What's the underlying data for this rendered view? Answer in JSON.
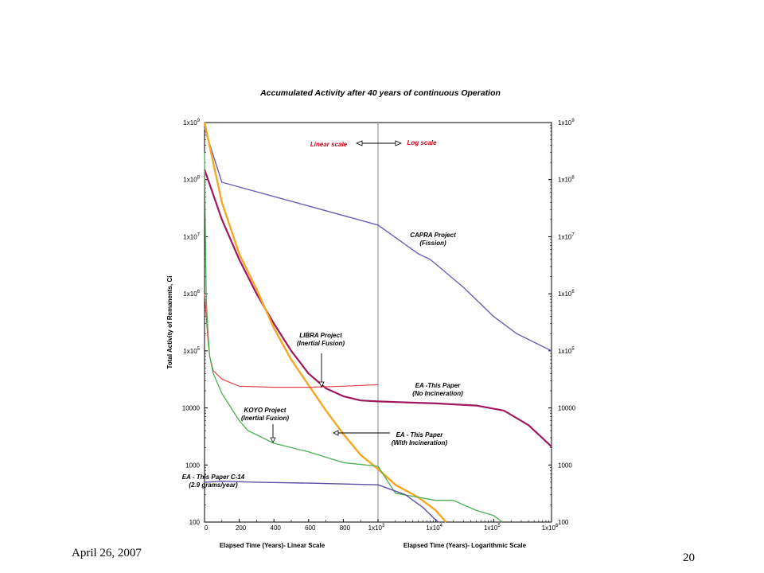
{
  "chart_data": {
    "type": "line",
    "title": "Accumulated Activity after 40 years of continuous Operation",
    "ylabel": "Total Activity of Remanents, Ci",
    "xlabel_linear": "Elapsed Time (Years)- Linear Scale",
    "xlabel_log": "Elapsed Time (Years)- Logarithmic Scale",
    "y_scale": "log",
    "ylim": [
      100,
      1000000000
    ],
    "y_ticks": [
      {
        "base": "1x10",
        "exp": "9",
        "value": 1000000000
      },
      {
        "base": "1x10",
        "exp": "8",
        "value": 100000000
      },
      {
        "base": "1x10",
        "exp": "7",
        "value": 10000000
      },
      {
        "base": "1x10",
        "exp": "6",
        "value": 1000000
      },
      {
        "base": "1x10",
        "exp": "5",
        "value": 100000
      },
      {
        "base": "10000",
        "exp": "",
        "value": 10000
      },
      {
        "base": "1000",
        "exp": "",
        "value": 1000
      },
      {
        "base": "100",
        "exp": "",
        "value": 100
      }
    ],
    "x_linear_range": [
      0,
      1000
    ],
    "x_log_range": [
      1000,
      1000000
    ],
    "x_ticks_linear": [
      {
        "label": "0",
        "value": 0
      },
      {
        "label": "200",
        "value": 200
      },
      {
        "label": "400",
        "value": 400
      },
      {
        "label": "600",
        "value": 600
      },
      {
        "label": "800",
        "value": 800
      }
    ],
    "x_ticks_log": [
      {
        "base": "1x10",
        "exp": "3",
        "value": 1000
      },
      {
        "base": "1x10",
        "exp": "4",
        "value": 10000
      },
      {
        "base": "1x10",
        "exp": "5",
        "value": 100000
      },
      {
        "base": "1x10",
        "exp": "6",
        "value": 1000000
      }
    ],
    "scale_divider_label_left": "Linear scale",
    "scale_divider_label_right": "Log scale",
    "series": [
      {
        "name": "CAPRA Project (Fission)",
        "label_lines": [
          "CAPRA  Project",
          "(Fission)"
        ],
        "color": "#6a5fb5",
        "points": [
          [
            0,
            800000000
          ],
          [
            100,
            90000000
          ],
          [
            1000,
            16000000
          ],
          [
            5000,
            5000000
          ],
          [
            8000,
            4000000
          ],
          [
            30000,
            1300000
          ],
          [
            100000,
            400000
          ],
          [
            250000,
            200000
          ],
          [
            1000000,
            100000
          ]
        ]
      },
      {
        "name": "EA -This Paper (No Incineration)",
        "label_lines": [
          "EA -This Paper",
          "(No Incineration)"
        ],
        "color": "#a0185e",
        "points": [
          [
            0,
            150000000
          ],
          [
            100,
            20000000
          ],
          [
            200,
            4000000
          ],
          [
            300,
            1000000
          ],
          [
            400,
            300000
          ],
          [
            500,
            100000
          ],
          [
            600,
            40000
          ],
          [
            700,
            22000
          ],
          [
            800,
            16000
          ],
          [
            900,
            13500
          ],
          [
            1000,
            13000
          ],
          [
            3000,
            12500
          ],
          [
            10000,
            12000
          ],
          [
            50000,
            11000
          ],
          [
            150000,
            9000
          ],
          [
            400000,
            5000
          ],
          [
            1000000,
            2100
          ]
        ]
      },
      {
        "name": "EA - This Paper (With Incineration)",
        "label_lines": [
          "EA - This Paper",
          "(With Incineration)"
        ],
        "color": "#f5a623",
        "points": [
          [
            0,
            1000000000
          ],
          [
            100,
            40000000
          ],
          [
            200,
            5000000
          ],
          [
            300,
            1200000
          ],
          [
            400,
            250000
          ],
          [
            500,
            70000
          ],
          [
            600,
            25000
          ],
          [
            700,
            9000
          ],
          [
            800,
            3500
          ],
          [
            900,
            1500
          ],
          [
            1000,
            850
          ],
          [
            2000,
            450
          ],
          [
            5000,
            270
          ],
          [
            10000,
            160
          ],
          [
            15000,
            100
          ]
        ]
      },
      {
        "name": "LIBRA Project (Inertial Fusion)",
        "label_lines": [
          "LIBRA  Project",
          "(Inertial Fusion)"
        ],
        "color": "#e0444c",
        "points": [
          [
            0,
            1000000
          ],
          [
            10,
            400000
          ],
          [
            20,
            150000
          ],
          [
            30,
            80000
          ],
          [
            50,
            45000
          ],
          [
            100,
            32000
          ],
          [
            200,
            24000
          ],
          [
            400,
            23000
          ],
          [
            600,
            23000
          ],
          [
            800,
            24000
          ],
          [
            1000,
            25500
          ]
        ]
      },
      {
        "name": "KOYO Project (Inertial Fusion)",
        "label_lines": [
          "KOYO  Project",
          "(Inertial Fusion)"
        ],
        "color": "#4caf50",
        "points": [
          [
            0,
            300000000
          ],
          [
            5,
            10000000
          ],
          [
            10,
            800000
          ],
          [
            20,
            200000
          ],
          [
            30,
            80000
          ],
          [
            50,
            40000
          ],
          [
            100,
            18000
          ],
          [
            200,
            6000
          ],
          [
            250,
            4000
          ],
          [
            400,
            2400
          ],
          [
            600,
            1700
          ],
          [
            800,
            1100
          ],
          [
            1000,
            950
          ],
          [
            2000,
            320
          ],
          [
            10000,
            240
          ],
          [
            20000,
            240
          ],
          [
            50000,
            160
          ],
          [
            100000,
            130
          ],
          [
            140000,
            100
          ]
        ]
      },
      {
        "name": "EA - This Paper C-14 (2.9 grams/year)",
        "label_lines": [
          "EA - This Paper  C-14",
          "(2.9 grams/year)"
        ],
        "color": "#5a50a8",
        "points": [
          [
            0,
            500
          ],
          [
            100,
            520
          ],
          [
            300,
            500
          ],
          [
            600,
            480
          ],
          [
            1000,
            450
          ],
          [
            3000,
            300
          ],
          [
            6000,
            180
          ],
          [
            9000,
            120
          ],
          [
            11000,
            100
          ]
        ]
      }
    ]
  },
  "footer": {
    "date": "April 26, 2007",
    "page": "20"
  }
}
